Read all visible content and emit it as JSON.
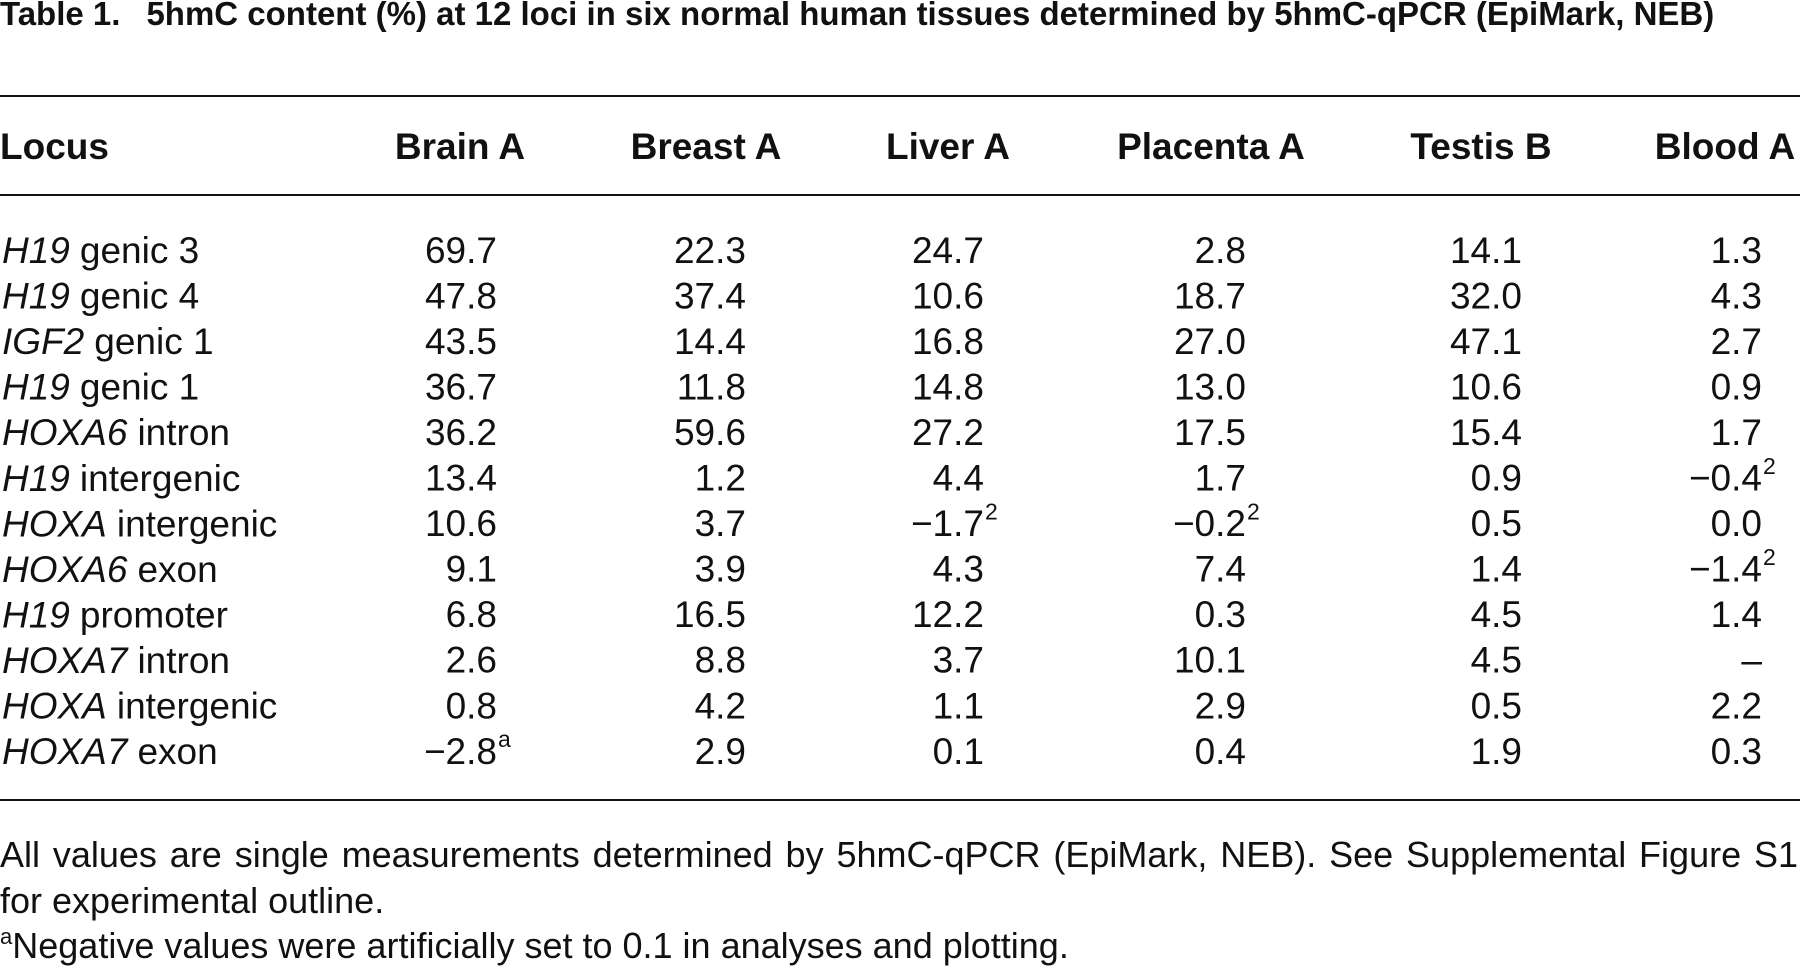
{
  "header": {
    "label": "Table 1.",
    "title": "5hmC content (%) at 12 loci in six normal human tissues determined by 5hmC-qPCR (EpiMark, NEB)"
  },
  "table": {
    "columns": [
      "Locus",
      "Brain A",
      "Breast A",
      "Liver A",
      "Placenta A",
      "Testis B",
      "Blood A"
    ],
    "rows": [
      {
        "gene": "H19",
        "locus": "genic 3",
        "cells": [
          "69.7",
          "22.3",
          "24.7",
          "2.8",
          "14.1",
          "1.3"
        ]
      },
      {
        "gene": "H19",
        "locus": "genic 4",
        "cells": [
          "47.8",
          "37.4",
          "10.6",
          "18.7",
          "32.0",
          "4.3"
        ]
      },
      {
        "gene": "IGF2",
        "locus": "genic 1",
        "cells": [
          "43.5",
          "14.4",
          "16.8",
          "27.0",
          "47.1",
          "2.7"
        ]
      },
      {
        "gene": "H19",
        "locus": "genic 1",
        "cells": [
          "36.7",
          "11.8",
          "14.8",
          "13.0",
          "10.6",
          "0.9"
        ]
      },
      {
        "gene": "HOXA6",
        "locus": "intron",
        "cells": [
          "36.2",
          "59.6",
          "27.2",
          "17.5",
          "15.4",
          "1.7"
        ]
      },
      {
        "gene": "H19",
        "locus": "intergenic",
        "cells": [
          "13.4",
          "1.2",
          "4.4",
          "1.7",
          "0.9",
          {
            "text": "−0.4",
            "sup": "2"
          }
        ]
      },
      {
        "gene": "HOXA",
        "locus": "intergenic",
        "cells": [
          "10.6",
          "3.7",
          {
            "text": "−1.7",
            "sup": "2"
          },
          {
            "text": "−0.2",
            "sup": "2"
          },
          "0.5",
          "0.0"
        ]
      },
      {
        "gene": "HOXA6",
        "locus": "exon",
        "cells": [
          "9.1",
          "3.9",
          "4.3",
          "7.4",
          "1.4",
          {
            "text": "−1.4",
            "sup": "2"
          }
        ]
      },
      {
        "gene": "H19",
        "locus": "promoter",
        "cells": [
          "6.8",
          "16.5",
          "12.2",
          "0.3",
          "4.5",
          "1.4"
        ]
      },
      {
        "gene": "HOXA7",
        "locus": "intron",
        "cells": [
          "2.6",
          "8.8",
          "3.7",
          "10.1",
          "4.5",
          "–"
        ]
      },
      {
        "gene": "HOXA",
        "locus": "intergenic",
        "cells": [
          "0.8",
          "4.2",
          "1.1",
          "2.9",
          "0.5",
          "2.2"
        ]
      },
      {
        "gene": "HOXA7",
        "locus": "exon",
        "cells": [
          {
            "text": "−2.8",
            "sup": "a"
          },
          "2.9",
          "0.1",
          "0.4",
          "1.9",
          "0.3"
        ]
      }
    ]
  },
  "note": "All values are single measurements determined by 5hmC-qPCR (EpiMark, NEB). See Supplemental Figure S1 for experimental outline.",
  "footnote": {
    "mark": "a",
    "text": "Negative values were artificially set to 0.1 in analyses and plotting."
  }
}
